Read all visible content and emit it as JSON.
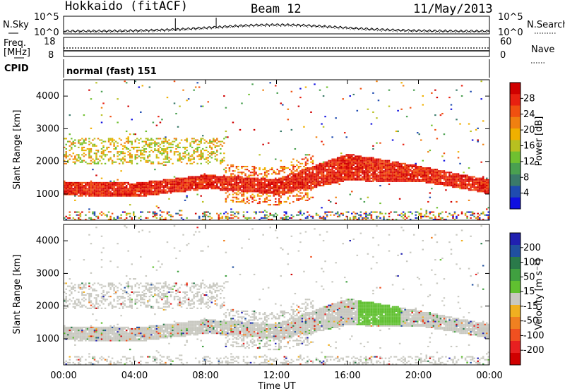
{
  "header": {
    "station": "Hokkaido (fitACF)",
    "beam": "Beam 12",
    "date": "11/May/2013"
  },
  "panel_labels": {
    "nsky": "N.Sky",
    "nsearch": "N.Search",
    "nsky_top": "10^5",
    "nsky_bot": "10^0",
    "ns_top": "10^5",
    "ns_bot": "10^0",
    "freq_line1": "Freq.",
    "freq_line2": "[MHz]",
    "freq_top": "18",
    "freq_bot": "8",
    "nave": "Nave",
    "nave_top": "60",
    "nave_bot": "0",
    "cpid": "CPID",
    "cpid_text": "normal (fast) 151"
  },
  "colors": {
    "power": [
      "#1010e0",
      "#1f4bb0",
      "#3a7a6a",
      "#4aa050",
      "#70c030",
      "#b8c020",
      "#f0b000",
      "#f08010",
      "#f05010",
      "#e82010",
      "#d00000"
    ],
    "velocity": [
      "#2020b0",
      "#2050a0",
      "#2a7a4a",
      "#40a040",
      "#60c030",
      "#c8c8c0",
      "#f0b020",
      "#f08020",
      "#f05020",
      "#e82020",
      "#d00000"
    ]
  },
  "chart_data": [
    {
      "type": "heatmap",
      "name": "power",
      "ylabel": "Slant Range [km]",
      "yticks": [
        "1000",
        "2000",
        "3000",
        "4000"
      ],
      "ylim": [
        200,
        4500
      ],
      "xlim": [
        "00:00",
        "24:00"
      ],
      "colorbar": {
        "label": "Power [dB]",
        "ticks": [
          "4",
          "8",
          "12",
          "16",
          "20",
          "24",
          "28"
        ],
        "range": [
          0,
          32
        ]
      },
      "bands": [
        {
          "x": [
            0,
            4,
            8,
            12,
            16,
            20,
            24
          ],
          "y": [
            1150,
            1100,
            1350,
            1200,
            1800,
            1600,
            1200
          ],
          "description": "main echo band ~24-30 dB"
        }
      ]
    },
    {
      "type": "heatmap",
      "name": "velocity",
      "ylabel": "Slant Range [km]",
      "yticks": [
        "1000",
        "2000",
        "3000",
        "4000"
      ],
      "ylim": [
        200,
        4500
      ],
      "xlabel": "Time UT",
      "xticks": [
        "00:00",
        "04:00",
        "08:00",
        "12:00",
        "16:00",
        "20:00",
        "00:00"
      ],
      "colorbar": {
        "label": "Velocity [m s⁻¹]",
        "ticks": [
          "200",
          "100",
          "50",
          "15",
          "-15",
          "-50",
          "-100",
          "-200"
        ]
      }
    }
  ]
}
